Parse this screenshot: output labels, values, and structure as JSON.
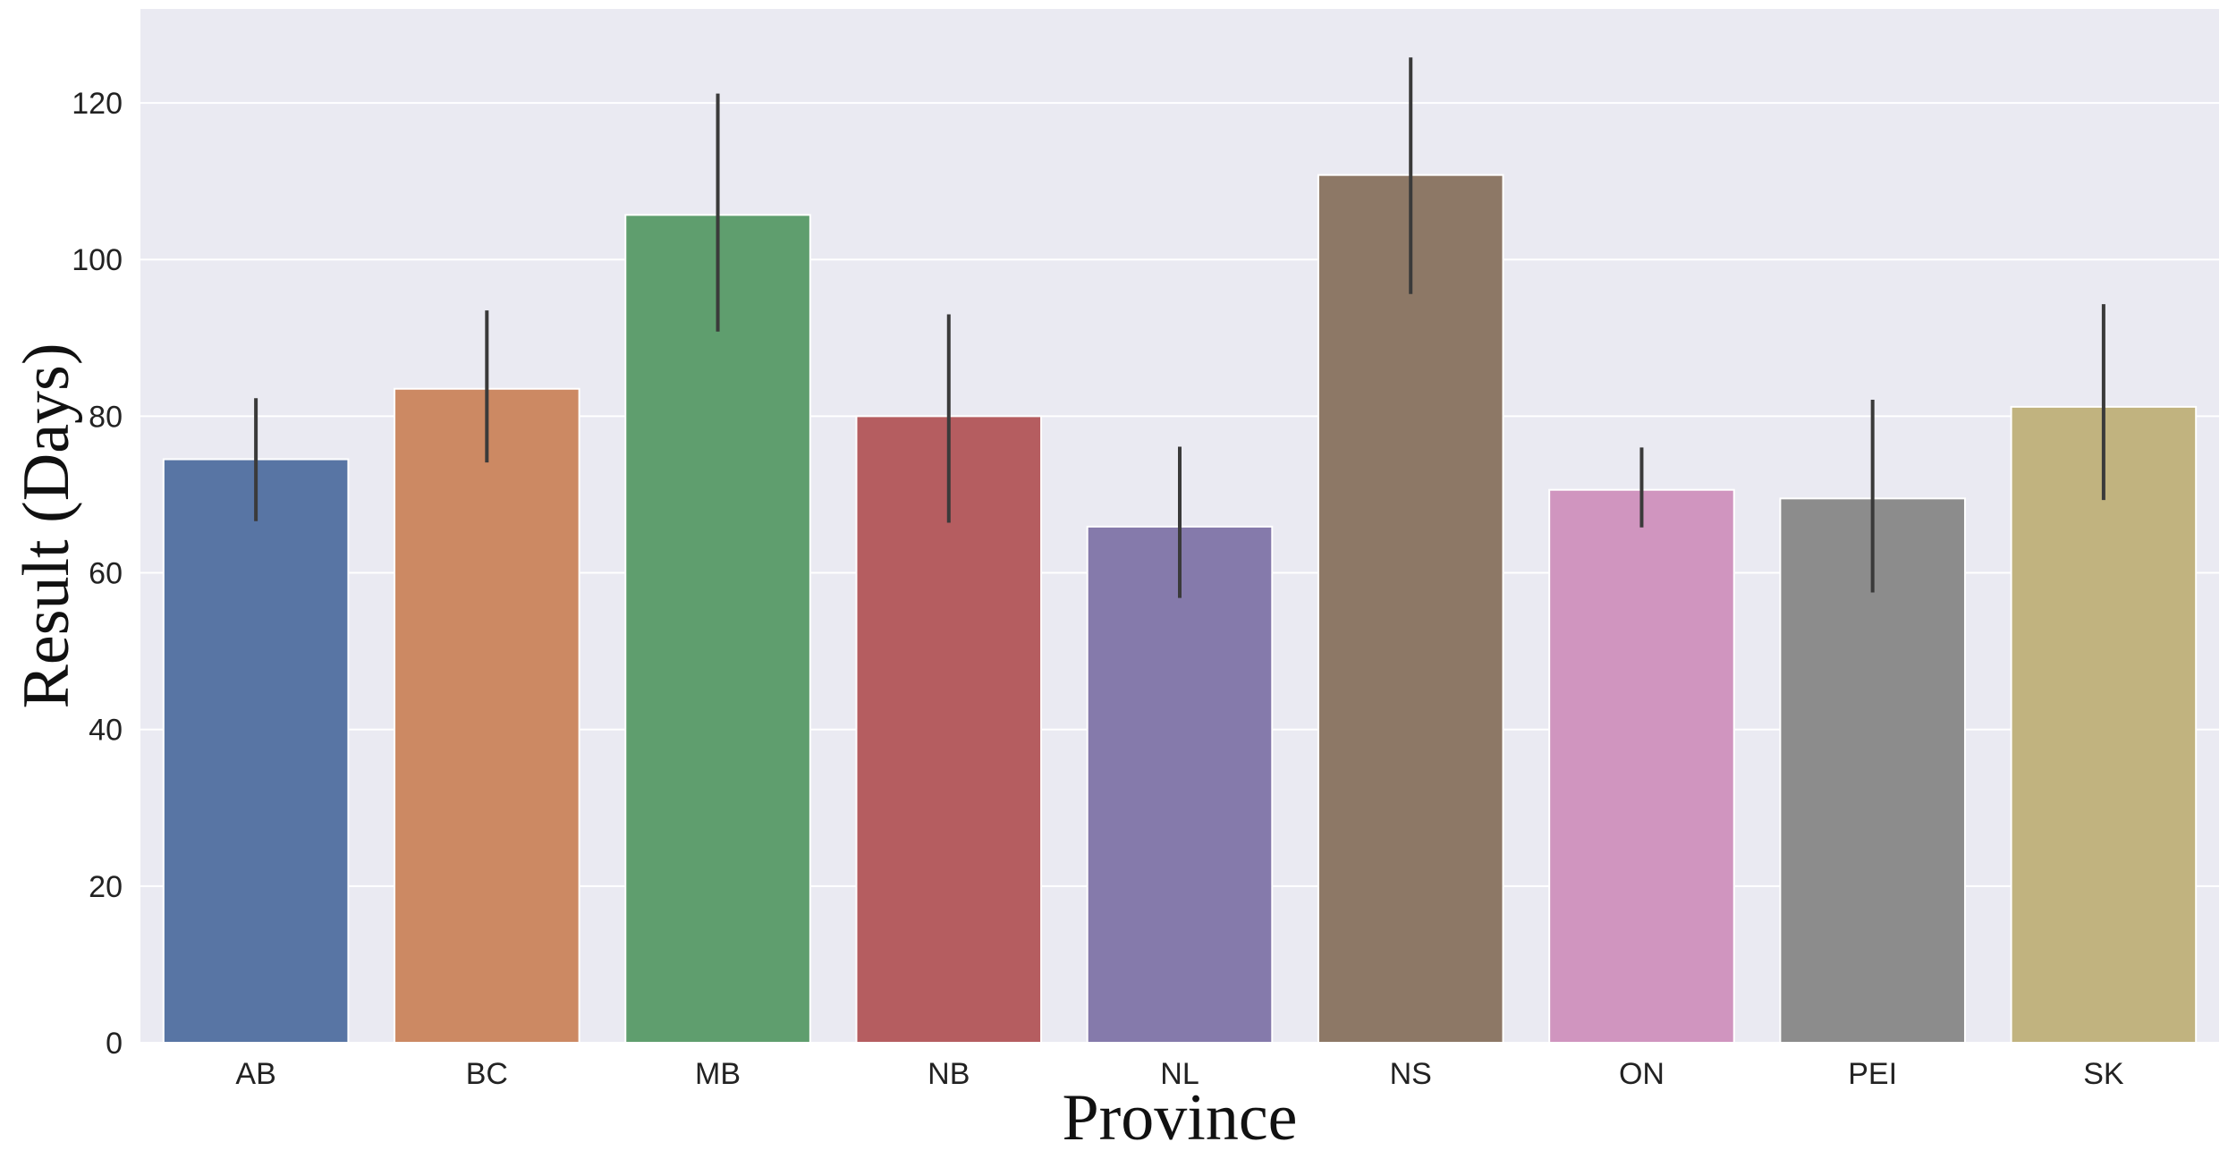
{
  "chart_data": {
    "type": "bar",
    "title": "",
    "xlabel": "Province",
    "ylabel": "Result (Days)",
    "categories": [
      "AB",
      "BC",
      "MB",
      "NB",
      "NL",
      "NS",
      "ON",
      "PEI",
      "SK"
    ],
    "values": [
      74.5,
      83.5,
      105.7,
      80.0,
      65.9,
      110.8,
      70.6,
      69.5,
      81.2
    ],
    "error_low": [
      66.6,
      74.1,
      90.8,
      66.4,
      56.8,
      95.6,
      65.8,
      57.5,
      69.3
    ],
    "error_high": [
      82.3,
      93.5,
      121.2,
      93.0,
      76.1,
      125.8,
      76.0,
      82.1,
      94.3
    ],
    "colors": [
      "#5875a4",
      "#cc8963",
      "#5f9e6e",
      "#b55d60",
      "#857aab",
      "#8d7866",
      "#d095bf",
      "#8c8c8c",
      "#c1b37f"
    ],
    "ylim": [
      0,
      132
    ],
    "yticks": [
      0,
      20,
      40,
      60,
      80,
      100,
      120
    ],
    "grid": true,
    "background": "#eaeaf2",
    "error_color": "#3a3a3a"
  }
}
